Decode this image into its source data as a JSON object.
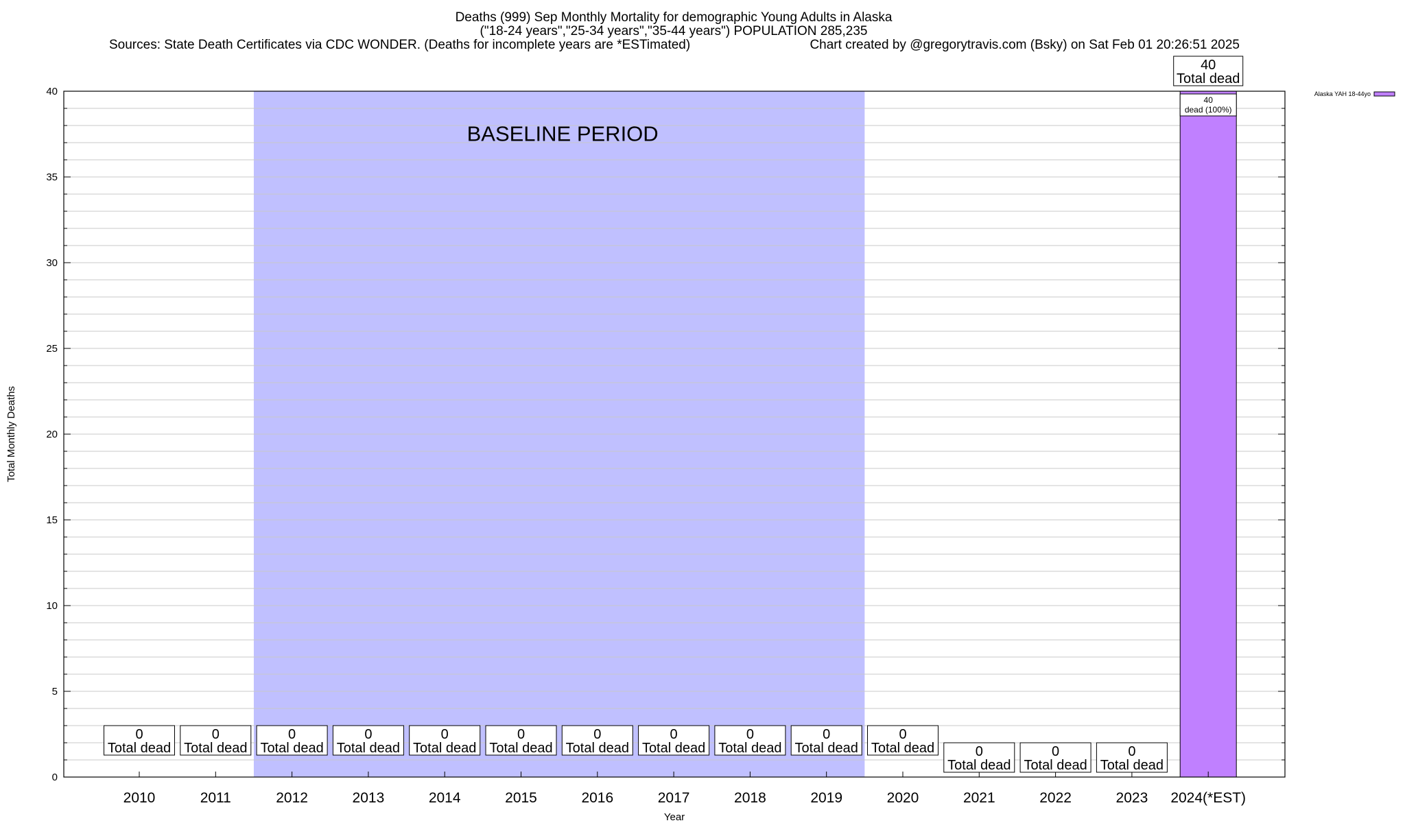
{
  "chart_data": {
    "type": "bar",
    "title_lines": [
      "Deaths (999) Sep Monthly Mortality for demographic Young Adults in Alaska",
      "(\"18-24 years\",\"25-34 years\",\"35-44 years\") POPULATION 285,235",
      "Sources: State Death Certificates via CDC WONDER. (Deaths for incomplete years are *ESTimated)",
      "Chart created by @gregorytravis.com (Bsky) on Sat Feb 01 20:26:51 2025"
    ],
    "xlabel": "Year",
    "ylabel": "Total Monthly Deaths",
    "ylim": [
      0,
      40
    ],
    "yticks": [
      0,
      5,
      10,
      15,
      20,
      25,
      30,
      35,
      40
    ],
    "grid": true,
    "categories": [
      "2010",
      "2011",
      "2012",
      "2013",
      "2014",
      "2015",
      "2016",
      "2017",
      "2018",
      "2019",
      "2020",
      "2021",
      "2022",
      "2023",
      "2024(*EST)"
    ],
    "series": [
      {
        "name": "Alaska YAH 18-44yo",
        "color": "#c080ff",
        "values": [
          0,
          0,
          0,
          0,
          0,
          0,
          0,
          0,
          0,
          0,
          0,
          0,
          0,
          0,
          40
        ]
      }
    ],
    "total_labels": [
      {
        "value": "0",
        "label": "Total dead"
      },
      {
        "value": "0",
        "label": "Total dead"
      },
      {
        "value": "0",
        "label": "Total dead"
      },
      {
        "value": "0",
        "label": "Total dead"
      },
      {
        "value": "0",
        "label": "Total dead"
      },
      {
        "value": "0",
        "label": "Total dead"
      },
      {
        "value": "0",
        "label": "Total dead"
      },
      {
        "value": "0",
        "label": "Total dead"
      },
      {
        "value": "0",
        "label": "Total dead"
      },
      {
        "value": "0",
        "label": "Total dead"
      },
      {
        "value": "0",
        "label": "Total dead"
      },
      {
        "value": "0",
        "label": "Total dead"
      },
      {
        "value": "0",
        "label": "Total dead"
      },
      {
        "value": "0",
        "label": "Total dead"
      },
      {
        "value": "40",
        "label": "Total dead"
      }
    ],
    "segment_label": {
      "category": "2024(*EST)",
      "value": "40",
      "text": "dead (100%)"
    },
    "baseline": {
      "label": "BASELINE PERIOD",
      "start": "2012",
      "end": "2019",
      "color": "#c0c0ff"
    },
    "legend": {
      "placement": "top-right",
      "entries": [
        "Alaska YAH 18-44yo"
      ]
    }
  }
}
